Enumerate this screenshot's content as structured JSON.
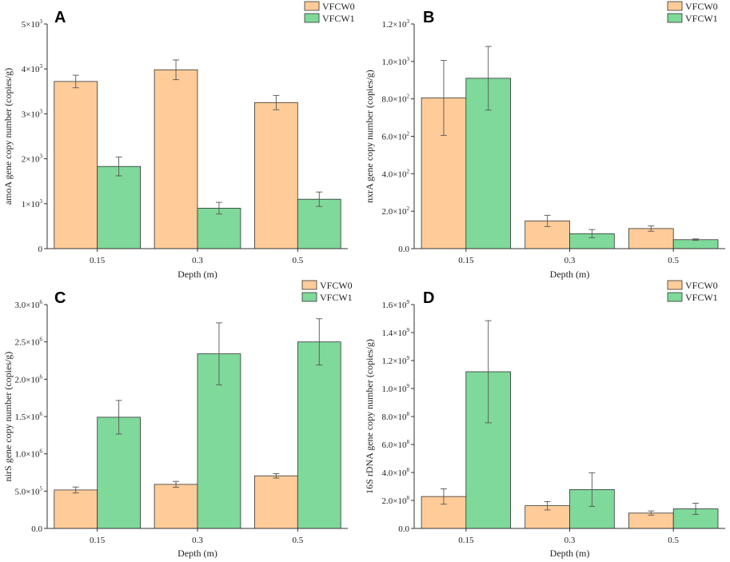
{
  "figure": {
    "colors": {
      "VFCW0": "#FFCC99",
      "VFCW1": "#7FD99A",
      "stroke": "#333333",
      "error": "#555555"
    }
  },
  "chart_data": [
    {
      "panel": "A",
      "type": "bar",
      "xlabel": "Depth (m)",
      "ylabel": "amoA gene copy number (copies/g)",
      "categories": [
        "0.15",
        "0.3",
        "0.5"
      ],
      "ylim": [
        0,
        5000
      ],
      "yticks": [
        {
          "value": 0,
          "mant": "0",
          "exp": ""
        },
        {
          "value": 1000,
          "mant": "1×10",
          "exp": "3"
        },
        {
          "value": 2000,
          "mant": "2×10",
          "exp": "3"
        },
        {
          "value": 3000,
          "mant": "3×10",
          "exp": "3"
        },
        {
          "value": 4000,
          "mant": "4×10",
          "exp": "3"
        },
        {
          "value": 5000,
          "mant": "5×10",
          "exp": "3"
        }
      ],
      "series": [
        {
          "name": "VFCW0",
          "values": [
            3720,
            3980,
            3250
          ],
          "errors": [
            140,
            220,
            160
          ]
        },
        {
          "name": "VFCW1",
          "values": [
            1830,
            900,
            1100
          ],
          "errors": [
            210,
            130,
            160
          ]
        }
      ]
    },
    {
      "panel": "B",
      "type": "bar",
      "xlabel": "Depth (m)",
      "ylabel": "nxrA gene copy number (copies/g)",
      "categories": [
        "0.15",
        "0.3",
        "0.5"
      ],
      "ylim": [
        0,
        1200
      ],
      "yticks": [
        {
          "value": 0,
          "mant": "0.0",
          "exp": ""
        },
        {
          "value": 200,
          "mant": "2.0×10",
          "exp": "2"
        },
        {
          "value": 400,
          "mant": "4.0×10",
          "exp": "2"
        },
        {
          "value": 600,
          "mant": "6.0×10",
          "exp": "2"
        },
        {
          "value": 800,
          "mant": "8.0×10",
          "exp": "2"
        },
        {
          "value": 1000,
          "mant": "1.0×10",
          "exp": "3"
        },
        {
          "value": 1200,
          "mant": "1.2×10",
          "exp": "3"
        }
      ],
      "series": [
        {
          "name": "VFCW0",
          "values": [
            805,
            148,
            107
          ],
          "errors": [
            200,
            30,
            14
          ]
        },
        {
          "name": "VFCW1",
          "values": [
            910,
            80,
            48
          ],
          "errors": [
            170,
            22,
            4
          ]
        }
      ]
    },
    {
      "panel": "C",
      "type": "bar",
      "xlabel": "Depth (m)",
      "ylabel": "nirS gene copy number (copies/g)",
      "categories": [
        "0.15",
        "0.3",
        "0.5"
      ],
      "ylim": [
        0,
        3000000
      ],
      "yticks": [
        {
          "value": 0,
          "mant": "0.0",
          "exp": ""
        },
        {
          "value": 500000,
          "mant": "5.0×10",
          "exp": "5"
        },
        {
          "value": 1000000,
          "mant": "1.0×10",
          "exp": "6"
        },
        {
          "value": 1500000,
          "mant": "1.5×10",
          "exp": "6"
        },
        {
          "value": 2000000,
          "mant": "2.0×10",
          "exp": "6"
        },
        {
          "value": 2500000,
          "mant": "2.5×10",
          "exp": "6"
        },
        {
          "value": 3000000,
          "mant": "3.0×10",
          "exp": "6"
        }
      ],
      "series": [
        {
          "name": "VFCW0",
          "values": [
            515000,
            590000,
            705000
          ],
          "errors": [
            40000,
            40000,
            30000
          ]
        },
        {
          "name": "VFCW1",
          "values": [
            1490000,
            2340000,
            2500000
          ],
          "errors": [
            225000,
            415000,
            310000
          ]
        }
      ]
    },
    {
      "panel": "D",
      "type": "bar",
      "xlabel": "Depth (m)",
      "ylabel": "16S rDNA gene copy number (copies/g)",
      "categories": [
        "0.15",
        "0.3",
        "0.5"
      ],
      "ylim": [
        0,
        1600000000
      ],
      "yticks": [
        {
          "value": 0,
          "mant": "0.0",
          "exp": ""
        },
        {
          "value": 200000000,
          "mant": "2.0×10",
          "exp": "8"
        },
        {
          "value": 400000000,
          "mant": "4.0×10",
          "exp": "8"
        },
        {
          "value": 600000000,
          "mant": "6.0×10",
          "exp": "8"
        },
        {
          "value": 800000000,
          "mant": "8.0×10",
          "exp": "8"
        },
        {
          "value": 1000000000,
          "mant": "1.0×10",
          "exp": "9"
        },
        {
          "value": 1200000000,
          "mant": "1.2×10",
          "exp": "9"
        },
        {
          "value": 1400000000,
          "mant": "1.4×10",
          "exp": "9"
        },
        {
          "value": 1600000000,
          "mant": "1.6×10",
          "exp": "9"
        }
      ],
      "series": [
        {
          "name": "VFCW0",
          "values": [
            228000000,
            162000000,
            110000000
          ],
          "errors": [
            55000000,
            30000000,
            15000000
          ]
        },
        {
          "name": "VFCW1",
          "values": [
            1120000000,
            278000000,
            140000000
          ],
          "errors": [
            365000000,
            120000000,
            40000000
          ]
        }
      ]
    }
  ]
}
